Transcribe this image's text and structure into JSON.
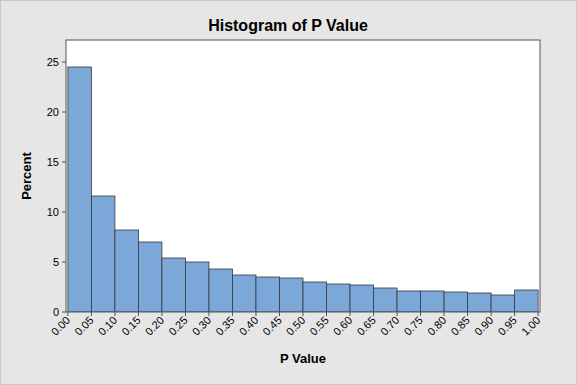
{
  "chart_data": {
    "type": "histogram",
    "title": "Histogram of P Value",
    "x_label": "P Value",
    "y_label": "Percent",
    "bins": [
      0,
      0.05,
      0.1,
      0.15,
      0.2,
      0.25,
      0.3,
      0.35,
      0.4,
      0.45,
      0.5,
      0.55,
      0.6,
      0.65,
      0.7,
      0.75,
      0.8,
      0.85,
      0.9,
      0.95,
      1
    ],
    "values": [
      24.5,
      11.6,
      8.2,
      7.0,
      5.4,
      5.0,
      4.3,
      3.7,
      3.5,
      3.4,
      3.0,
      2.8,
      2.7,
      2.4,
      2.1,
      2.1,
      2.0,
      1.9,
      1.7,
      2.2
    ],
    "color": "#7ba7d9",
    "xlim": [
      -0.004,
      1.004
    ],
    "ylim": [
      0,
      27.2
    ],
    "xticks": [
      {
        "value": 0,
        "label": "0.00"
      },
      0.05,
      {
        "value": 0.1,
        "label": "0.10"
      },
      0.15,
      {
        "value": 0.2,
        "label": "0.20"
      },
      0.25,
      {
        "value": 0.3,
        "label": "0.30"
      },
      0.35,
      {
        "value": 0.4,
        "label": "0.40"
      },
      0.45,
      {
        "value": 0.5,
        "label": "0.50"
      },
      0.55,
      {
        "value": 0.6,
        "label": "0.60"
      },
      0.65,
      {
        "value": 0.7,
        "label": "0.70"
      },
      0.75,
      {
        "value": 0.8,
        "label": "0.80"
      },
      0.85,
      {
        "value": 0.9,
        "label": "0.90"
      },
      0.95,
      {
        "value": 1,
        "label": "1.00"
      }
    ],
    "yticks": [
      0,
      5,
      10,
      15,
      20,
      25
    ],
    "grid": false
  }
}
